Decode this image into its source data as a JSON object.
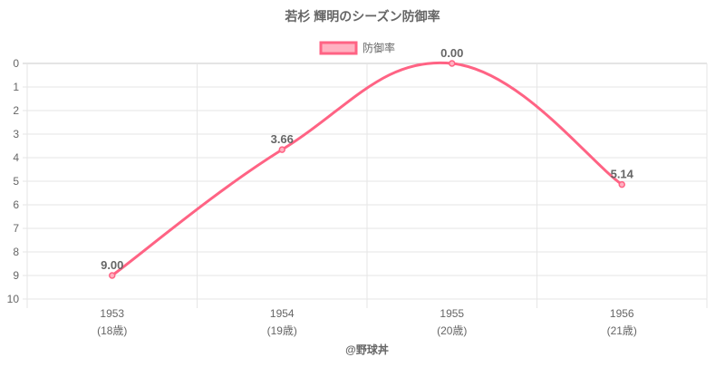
{
  "chart_data": {
    "type": "line",
    "title": "若杉 輝明のシーズン防御率",
    "categories": [
      "1953",
      "1954",
      "1955",
      "1956"
    ],
    "category_sublabels": [
      "(18歳)",
      "(19歳)",
      "(20歳)",
      "(21歳)"
    ],
    "series": [
      {
        "name": "防御率",
        "values": [
          9.0,
          3.66,
          0.0,
          5.14
        ],
        "labels": [
          "9.00",
          "3.66",
          "0.00",
          "5.14"
        ]
      }
    ],
    "ylim": [
      0,
      10
    ],
    "y_reversed": true,
    "yticks": [
      "0",
      "1",
      "2",
      "3",
      "4",
      "5",
      "6",
      "7",
      "8",
      "9",
      "10"
    ],
    "xlabel": "@野球丼",
    "ylabel": "",
    "grid": true,
    "legend_position": "top",
    "colors": {
      "line": "#ff6384",
      "fill": "#ffb1c1",
      "text": "#666666",
      "grid": "#e6e6e6"
    }
  }
}
